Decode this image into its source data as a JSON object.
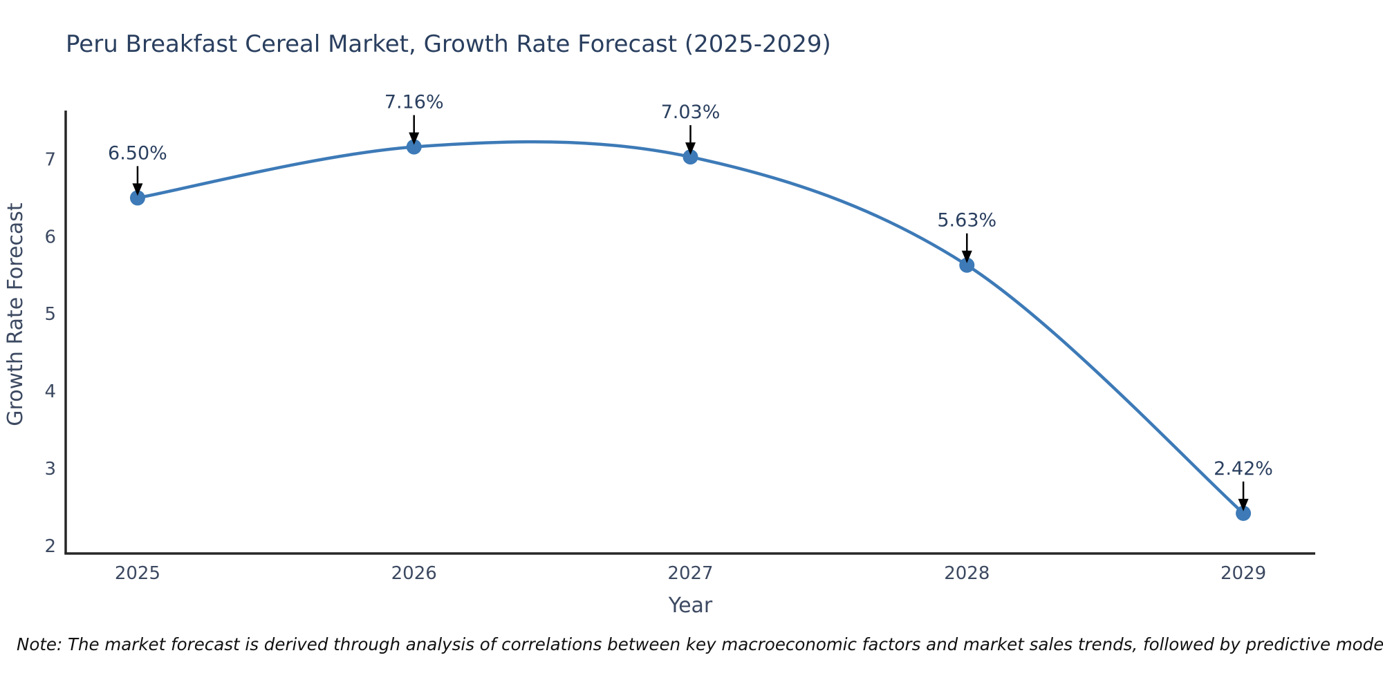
{
  "title": "Peru Breakfast Cereal Market, Growth Rate Forecast (2025-2029)",
  "note": "Note: The market forecast is derived through analysis of correlations between key macroeconomic factors and market sales trends, followed by predictive modeling to project future sales.",
  "colors": {
    "line": "#3d7ab7",
    "marker": "#3d7ab7",
    "title": "#2a3f5f",
    "axis_line": "#262626",
    "tick_label": "#3c4961",
    "axis_title": "#3c4961",
    "annotation_text": "#2a3f5f",
    "arrow": "#000000",
    "background": "#ffffff"
  },
  "chart_data": {
    "type": "line",
    "title": "Peru Breakfast Cereal Market, Growth Rate Forecast (2025-2029)",
    "xlabel": "Year",
    "ylabel": "Growth Rate Forecast",
    "x": [
      2025,
      2026,
      2027,
      2028,
      2029
    ],
    "values": [
      6.5,
      7.16,
      7.03,
      5.63,
      2.42
    ],
    "point_labels": [
      "6.50%",
      "7.16%",
      "7.03%",
      "5.63%",
      "2.42%"
    ],
    "xticks": [
      "2025",
      "2026",
      "2027",
      "2028",
      "2029"
    ],
    "xtick_years": [
      2025,
      2026,
      2027,
      2028,
      2029
    ],
    "yticks": [
      "2",
      "3",
      "4",
      "5",
      "6",
      "7"
    ],
    "ytick_values": [
      2,
      3,
      4,
      5,
      6,
      7
    ],
    "xlim": [
      2024.74,
      2029.26
    ],
    "ylim": [
      1.9,
      7.63
    ],
    "grid": false,
    "legend": "none",
    "line_shape": "spline",
    "line_width": 4.5,
    "marker_size": 11
  }
}
